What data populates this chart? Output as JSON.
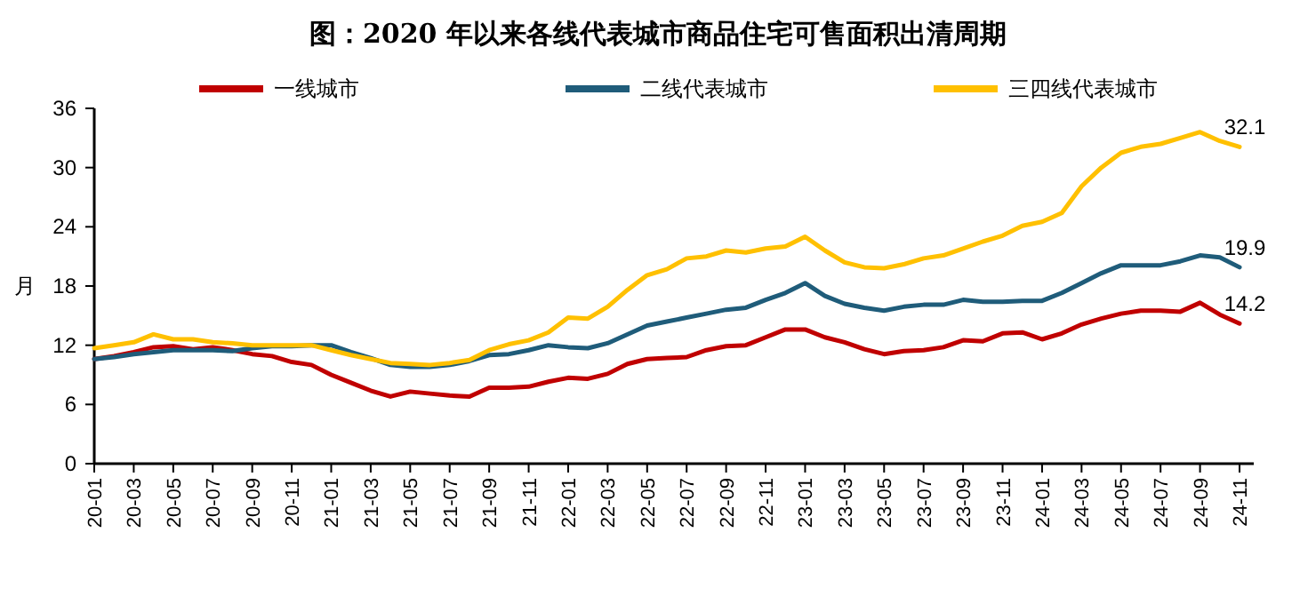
{
  "chart_data": {
    "type": "line",
    "title": "图：2020 年以来各线代表城市商品住宅可售面积出清周期",
    "ylabel": "月",
    "categories": [
      "20-01",
      null,
      "20-03",
      null,
      "20-05",
      null,
      "20-07",
      null,
      "20-09",
      null,
      "20-11",
      null,
      "21-01",
      null,
      "21-03",
      null,
      "21-05",
      null,
      "21-07",
      null,
      "21-09",
      null,
      "21-11",
      null,
      "22-01",
      null,
      "22-03",
      null,
      "22-05",
      null,
      "22-07",
      null,
      "22-09",
      null,
      "22-11",
      null,
      "23-01",
      null,
      "23-03",
      null,
      "23-05",
      null,
      "23-07",
      null,
      "23-09",
      null,
      "23-11",
      null,
      "24-01",
      null,
      "24-03",
      null,
      "24-05",
      null,
      "24-07",
      null,
      "24-09",
      null,
      "24-11"
    ],
    "series": [
      {
        "name": "一线城市",
        "color": "#c00000",
        "values": [
          10.6,
          10.9,
          11.3,
          11.8,
          11.9,
          11.6,
          11.8,
          11.5,
          11.1,
          10.9,
          10.3,
          10.0,
          9.0,
          8.2,
          7.4,
          6.8,
          7.3,
          7.1,
          6.9,
          6.8,
          7.7,
          7.7,
          7.8,
          8.3,
          8.7,
          8.6,
          9.1,
          10.1,
          10.6,
          10.7,
          10.8,
          11.5,
          11.9,
          12.0,
          12.8,
          13.6,
          13.6,
          12.8,
          12.3,
          11.6,
          11.1,
          11.4,
          11.5,
          11.8,
          12.5,
          12.4,
          13.2,
          13.3,
          12.6,
          13.2,
          14.1,
          14.7,
          15.2,
          15.5,
          15.5,
          15.4,
          16.3,
          15.1,
          14.2
        ],
        "value_labels": [
          null,
          null,
          null,
          null,
          null,
          null,
          null,
          null,
          null,
          null,
          null,
          null,
          null,
          null,
          null,
          null,
          null,
          null,
          null,
          null,
          null,
          null,
          null,
          null,
          null,
          null,
          null,
          null,
          null,
          null,
          null,
          null,
          null,
          null,
          null,
          null,
          null,
          null,
          null,
          null,
          null,
          null,
          null,
          null,
          null,
          null,
          null,
          null,
          null,
          null,
          null,
          null,
          null,
          null,
          null,
          null,
          null,
          null,
          "14.2"
        ]
      },
      {
        "name": "二线代表城市",
        "color": "#1f5c7a",
        "values": [
          10.6,
          10.8,
          11.1,
          11.3,
          11.5,
          11.5,
          11.5,
          11.4,
          11.7,
          11.9,
          11.9,
          12.0,
          12.0,
          11.3,
          10.7,
          10.0,
          9.8,
          9.8,
          10.0,
          10.4,
          11.0,
          11.1,
          11.5,
          12.0,
          11.8,
          11.7,
          12.2,
          13.1,
          14.0,
          14.4,
          14.8,
          15.2,
          15.6,
          15.8,
          16.6,
          17.3,
          18.3,
          17.0,
          16.2,
          15.8,
          15.5,
          15.9,
          16.1,
          16.1,
          16.6,
          16.4,
          16.4,
          16.5,
          16.5,
          17.3,
          18.3,
          19.3,
          20.1,
          20.1,
          20.1,
          20.5,
          21.1,
          20.9,
          19.9
        ],
        "value_labels": [
          null,
          null,
          null,
          null,
          null,
          null,
          null,
          null,
          null,
          null,
          null,
          null,
          null,
          null,
          null,
          null,
          null,
          null,
          null,
          null,
          null,
          null,
          null,
          null,
          null,
          null,
          null,
          null,
          null,
          null,
          null,
          null,
          null,
          null,
          null,
          null,
          null,
          null,
          null,
          null,
          null,
          null,
          null,
          null,
          null,
          null,
          null,
          null,
          null,
          null,
          null,
          null,
          null,
          null,
          null,
          null,
          null,
          null,
          "19.9"
        ]
      },
      {
        "name": "三四线代表城市",
        "color": "#ffc000",
        "values": [
          11.7,
          12.0,
          12.3,
          13.1,
          12.6,
          12.6,
          12.3,
          12.2,
          12.0,
          12.0,
          12.0,
          12.0,
          11.5,
          11.0,
          10.6,
          10.2,
          10.1,
          10.0,
          10.2,
          10.5,
          11.5,
          12.1,
          12.5,
          13.3,
          14.8,
          14.7,
          15.9,
          17.6,
          19.1,
          19.7,
          20.8,
          21.0,
          21.6,
          21.4,
          21.8,
          22.0,
          23.0,
          21.6,
          20.4,
          19.9,
          19.8,
          20.2,
          20.8,
          21.1,
          21.8,
          22.5,
          23.1,
          24.1,
          24.5,
          25.4,
          28.1,
          30.0,
          31.5,
          32.1,
          32.4,
          33.0,
          33.6,
          32.7,
          32.1
        ],
        "value_labels": [
          null,
          null,
          null,
          null,
          null,
          null,
          null,
          null,
          null,
          null,
          null,
          null,
          null,
          null,
          null,
          null,
          null,
          null,
          null,
          null,
          null,
          null,
          null,
          null,
          null,
          null,
          null,
          null,
          null,
          null,
          null,
          null,
          null,
          null,
          null,
          null,
          null,
          null,
          null,
          null,
          null,
          null,
          null,
          null,
          null,
          null,
          null,
          null,
          null,
          null,
          null,
          null,
          null,
          null,
          null,
          null,
          null,
          null,
          "32.1"
        ]
      }
    ],
    "ylim": [
      0,
      36
    ],
    "yticks": [
      0,
      6,
      12,
      18,
      24,
      30,
      36
    ],
    "legend": "top",
    "grid": false
  }
}
